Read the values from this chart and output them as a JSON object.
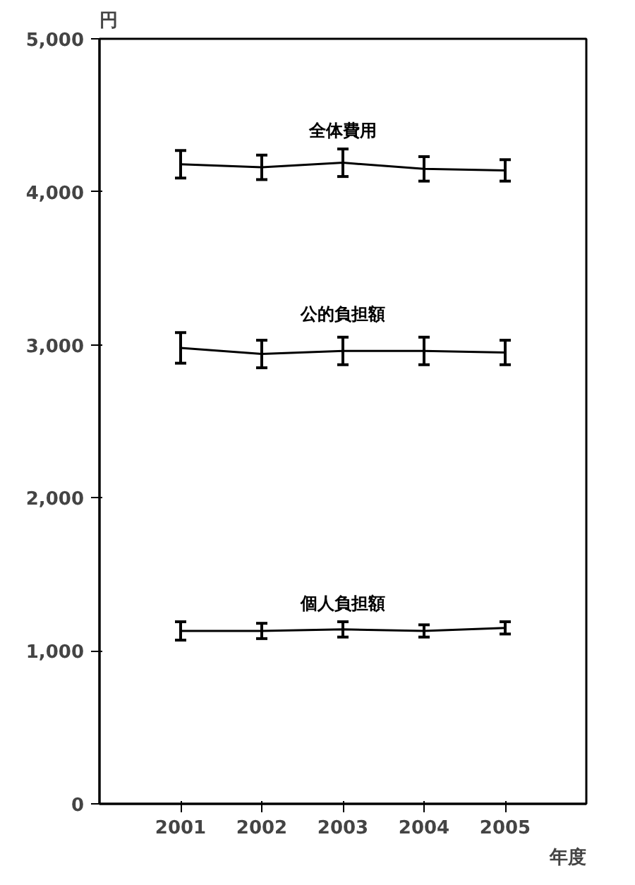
{
  "chart_data": {
    "type": "line",
    "xlabel": "年度",
    "ylabel": "円",
    "x": [
      2001,
      2002,
      2003,
      2004,
      2005
    ],
    "xlim": [
      2000,
      2006
    ],
    "xticks": [
      2001,
      2002,
      2003,
      2004,
      2005
    ],
    "ylim": [
      0,
      5000
    ],
    "yticks": [
      {
        "value": 0,
        "label": "0"
      },
      {
        "value": 1000,
        "label": "1,000"
      },
      {
        "value": 2000,
        "label": "2,000"
      },
      {
        "value": 3000,
        "label": "3,000"
      },
      {
        "value": 4000,
        "label": "4,000"
      },
      {
        "value": 5000,
        "label": "5,000"
      }
    ],
    "grid": false,
    "marker": "none",
    "line_style": "solid",
    "series": [
      {
        "name": "全体費用",
        "color": "#000000",
        "values": [
          4180,
          4160,
          4190,
          4150,
          4140
        ],
        "errors": [
          90,
          80,
          90,
          80,
          70
        ]
      },
      {
        "name": "公的負担額",
        "color": "#000000",
        "values": [
          2980,
          2940,
          2960,
          2960,
          2950
        ],
        "errors": [
          100,
          90,
          90,
          90,
          80
        ]
      },
      {
        "name": "個人負担額",
        "color": "#000000",
        "values": [
          1130,
          1130,
          1140,
          1130,
          1150
        ],
        "errors": [
          60,
          50,
          50,
          40,
          40
        ]
      }
    ]
  }
}
